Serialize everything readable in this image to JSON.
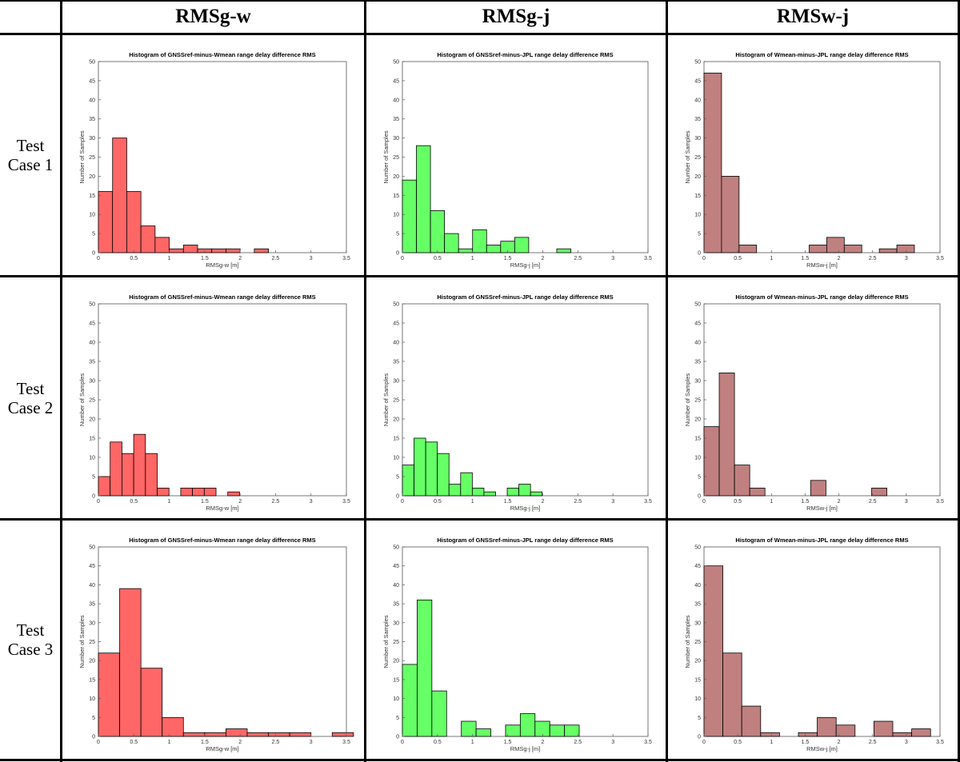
{
  "table": {
    "column_headers": [
      "RMSg-w",
      "RMSg-j",
      "RMSw-j"
    ],
    "row_headers": [
      {
        "line1": "Test",
        "line2": "Case 1"
      },
      {
        "line1": "Test",
        "line2": "Case 2"
      },
      {
        "line1": "Test",
        "line2": "Case 3"
      }
    ]
  },
  "colors": {
    "g_w": "#ff6666",
    "g_j": "#66ff66",
    "w_j": "#c08080",
    "border": "#000000"
  },
  "chart_data": [
    {
      "type": "bar",
      "row": 0,
      "col": 0,
      "color_key": "g_w",
      "title": "Histogram of GNSSref-minus-Wmean range delay difference RMS",
      "xlabel": "RMSg-w [m]",
      "ylabel": "Number of Samples",
      "xlim": [
        0,
        3.5
      ],
      "ylim": [
        0,
        50
      ],
      "xticks": [
        0,
        0.5,
        1,
        1.5,
        2,
        2.5,
        3,
        3.5
      ],
      "xtick_labels": [
        "0",
        "0.5",
        "1",
        "1.5",
        "2",
        "2.5",
        "3",
        "3.5"
      ],
      "yticks": [
        0,
        5,
        10,
        15,
        20,
        25,
        30,
        35,
        40,
        45,
        50
      ],
      "bin_start": 0,
      "bin_width": 0.2,
      "values": [
        16,
        30,
        16,
        7,
        4,
        1,
        2,
        1,
        1,
        1,
        0,
        1
      ]
    },
    {
      "type": "bar",
      "row": 0,
      "col": 1,
      "color_key": "g_j",
      "title": "Histogram of GNSSref-minus-JPL range delay difference RMS",
      "xlabel": "RMSg-j [m]",
      "ylabel": "Number of Samples",
      "xlim": [
        0,
        3.5
      ],
      "ylim": [
        0,
        50
      ],
      "xticks": [
        0,
        0.5,
        1,
        1.5,
        2,
        2.5,
        3,
        3.5
      ],
      "xtick_labels": [
        "0",
        "0.5",
        "1",
        "1.5",
        "2",
        "2.5",
        "3",
        "3.5"
      ],
      "yticks": [
        0,
        5,
        10,
        15,
        20,
        25,
        30,
        35,
        40,
        45,
        50
      ],
      "bin_start": 0,
      "bin_width": 0.2,
      "values": [
        19,
        28,
        11,
        5,
        1,
        6,
        2,
        3,
        4,
        0,
        0,
        1
      ]
    },
    {
      "type": "bar",
      "row": 0,
      "col": 2,
      "color_key": "w_j",
      "title": "Histogram of Wmean-minus-JPL range delay difference RMS",
      "xlabel": "RMSw-j [m]",
      "ylabel": "Number of Samples",
      "xlim": [
        0,
        3.5
      ],
      "ylim": [
        0,
        50
      ],
      "xticks": [
        0,
        0.5,
        1,
        1.5,
        2,
        2.5,
        3,
        3.5
      ],
      "xtick_labels": [
        "0",
        "0.5",
        "1",
        "1.5",
        "2",
        "2.5",
        "3",
        "3.5"
      ],
      "yticks": [
        0,
        5,
        10,
        15,
        20,
        25,
        30,
        35,
        40,
        45,
        50
      ],
      "bin_start": 0,
      "bin_width": 0.26,
      "values": [
        47,
        20,
        2,
        0,
        0,
        0,
        2,
        4,
        2,
        0,
        1,
        2
      ]
    },
    {
      "type": "bar",
      "row": 1,
      "col": 0,
      "color_key": "g_w",
      "title": "Histogram of GNSSref-minus-Wmean range delay difference RMS",
      "xlabel": "RMSg-w [m]",
      "ylabel": "Number of Samples",
      "xlim": [
        0,
        3.5
      ],
      "ylim": [
        0,
        50
      ],
      "xticks": [
        0,
        0.5,
        1,
        1.5,
        2,
        2.5,
        3,
        3.5
      ],
      "xtick_labels": [
        "0",
        "0.5",
        "1",
        "1.5",
        "2",
        "2.5",
        "3",
        "3.5"
      ],
      "yticks": [
        0,
        5,
        10,
        15,
        20,
        25,
        30,
        35,
        40,
        45,
        50
      ],
      "bin_start": 0,
      "bin_width": 0.166,
      "values": [
        5,
        14,
        11,
        16,
        11,
        2,
        0,
        2,
        2,
        2,
        0,
        1
      ]
    },
    {
      "type": "bar",
      "row": 1,
      "col": 1,
      "color_key": "g_j",
      "title": "Histogram of GNSSref-minus-JPL range delay difference RMS",
      "xlabel": "RMSg-j [m]",
      "ylabel": "Number of Samples",
      "xlim": [
        0,
        3.5
      ],
      "ylim": [
        0,
        50
      ],
      "xticks": [
        0,
        0.5,
        1,
        1.5,
        2,
        2.5,
        3,
        3.5
      ],
      "xtick_labels": [
        "0",
        "0.5",
        "1",
        "1.5",
        "2",
        "2.5",
        "3",
        "3.5"
      ],
      "yticks": [
        0,
        5,
        10,
        15,
        20,
        25,
        30,
        35,
        40,
        45,
        50
      ],
      "bin_start": 0,
      "bin_width": 0.166,
      "values": [
        8,
        15,
        14,
        11,
        3,
        6,
        2,
        1,
        0,
        2,
        3,
        1
      ]
    },
    {
      "type": "bar",
      "row": 1,
      "col": 2,
      "color_key": "w_j",
      "title": "Histogram of Wmean-minus-JPL range delay difference RMS",
      "xlabel": "RMSw-j [m]",
      "ylabel": "Number of Samples",
      "xlim": [
        0,
        3.5
      ],
      "ylim": [
        0,
        50
      ],
      "xticks": [
        0,
        0.5,
        1,
        1.5,
        2,
        2.5,
        3,
        3.5
      ],
      "xtick_labels": [
        "0",
        "0.5",
        "1",
        "1.5",
        "2",
        "2.5",
        "3",
        "3.5"
      ],
      "yticks": [
        0,
        5,
        10,
        15,
        20,
        25,
        30,
        35,
        40,
        45,
        50
      ],
      "bin_start": 0,
      "bin_width": 0.226,
      "values": [
        18,
        32,
        8,
        2,
        0,
        0,
        0,
        4,
        0,
        0,
        0,
        2
      ]
    },
    {
      "type": "bar",
      "row": 2,
      "col": 0,
      "color_key": "g_w",
      "title": "Histogram of GNSSref-minus-Wmean range delay difference RMS",
      "xlabel": "RMSg-w [m]",
      "ylabel": "Number of Samples",
      "xlim": [
        0,
        3.5
      ],
      "ylim": [
        0,
        50
      ],
      "xticks": [
        0,
        0.5,
        1,
        1.5,
        2,
        2.5,
        3,
        3.5
      ],
      "xtick_labels": [
        "0",
        "0.5",
        "1",
        "1.5",
        "2",
        "2.5",
        "3",
        "3.5"
      ],
      "yticks": [
        0,
        5,
        10,
        15,
        20,
        25,
        30,
        35,
        40,
        45,
        50
      ],
      "bin_start": 0,
      "bin_width": 0.3,
      "values": [
        22,
        39,
        18,
        5,
        1,
        1,
        2,
        1,
        1,
        1,
        0,
        1
      ]
    },
    {
      "type": "bar",
      "row": 2,
      "col": 1,
      "color_key": "g_j",
      "title": "Histogram of GNSSref-minus-JPL range delay difference RMS",
      "xlabel": "RMSg-j [m]",
      "ylabel": "Number of Samples",
      "xlim": [
        0,
        3.5
      ],
      "ylim": [
        0,
        50
      ],
      "xticks": [
        0,
        0.5,
        1,
        1.5,
        2,
        2.5,
        3,
        3.5
      ],
      "xtick_labels": [
        "0",
        "0.5",
        "1",
        "1.5",
        "2",
        "2.5",
        "3",
        "3.5"
      ],
      "yticks": [
        0,
        5,
        10,
        15,
        20,
        25,
        30,
        35,
        40,
        45,
        50
      ],
      "bin_start": 0,
      "bin_width": 0.21,
      "values": [
        19,
        36,
        12,
        0,
        4,
        2,
        0,
        3,
        6,
        4,
        3,
        3
      ]
    },
    {
      "type": "bar",
      "row": 2,
      "col": 2,
      "color_key": "w_j",
      "title": "Histogram of Wmean-minus-JPL range delay difference RMS",
      "xlabel": "RMSw-j [m]",
      "ylabel": "Number of Samples",
      "xlim": [
        0,
        3.5
      ],
      "ylim": [
        0,
        50
      ],
      "xticks": [
        0,
        0.5,
        1,
        1.5,
        2,
        2.5,
        3,
        3.5
      ],
      "xtick_labels": [
        "0",
        "0.5",
        "1",
        "1.5",
        "2",
        "2.5",
        "3",
        "3.5"
      ],
      "yticks": [
        0,
        5,
        10,
        15,
        20,
        25,
        30,
        35,
        40,
        45,
        50
      ],
      "bin_start": 0,
      "bin_width": 0.28,
      "values": [
        45,
        22,
        8,
        1,
        0,
        1,
        5,
        3,
        0,
        4,
        1,
        2
      ]
    }
  ]
}
